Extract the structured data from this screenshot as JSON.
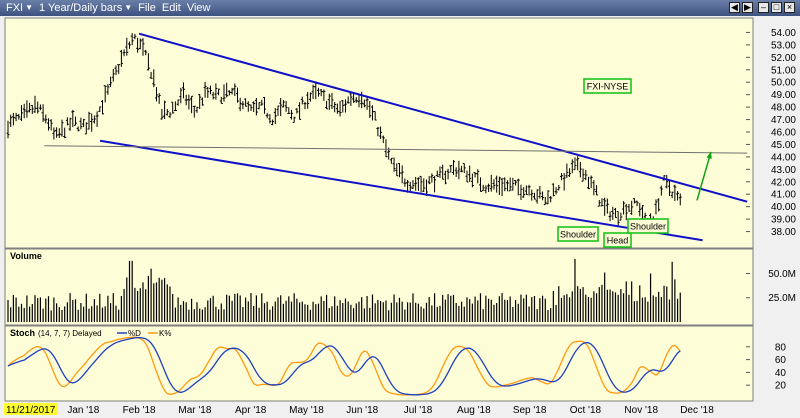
{
  "toolbar": {
    "symbol": "FXI",
    "period": "1 Year/Daily bars",
    "menus": [
      "File",
      "Edit",
      "View"
    ]
  },
  "colors": {
    "background": "#fdfdd8",
    "channel": "#1010c8",
    "neckline": "#707070",
    "bars": "#000000",
    "volume": "#000000",
    "stoch_d": "#2040c0",
    "stoch_k": "#ff9a10",
    "arrow": "#10a010",
    "label_border": "#10c010"
  },
  "chart_data": [
    {
      "type": "ohlc",
      "ylim": [
        37,
        55
      ],
      "yticks": [
        38,
        39,
        40,
        41,
        42,
        43,
        44,
        45,
        46,
        47,
        48,
        49,
        50,
        51,
        52,
        53,
        54
      ],
      "ytick_labels": [
        "38.00",
        "39.00",
        "40.00",
        "41.00",
        "42.00",
        "43.00",
        "44.00",
        "45.00",
        "46.00",
        "47.00",
        "48.00",
        "49.00",
        "50.00",
        "51.00",
        "52.00",
        "53.00",
        "54.00"
      ],
      "x_months": [
        "Jan '18",
        "Feb '18",
        "Mar '18",
        "Apr '18",
        "May '18",
        "Jun '18",
        "Jul '18",
        "Aug '18",
        "Sep '18",
        "Oct '18",
        "Nov '18",
        "Dec '18"
      ],
      "x_month_positions": [
        1.4,
        2.4,
        3.4,
        4.4,
        5.4,
        6.4,
        7.4,
        8.4,
        9.4,
        10.4,
        11.4,
        12.4
      ],
      "x_range": [
        0.05,
        13.35
      ],
      "price_anchors": [
        [
          0.05,
          46.6
        ],
        [
          0.3,
          47.2
        ],
        [
          0.55,
          48.1
        ],
        [
          0.75,
          47.0
        ],
        [
          0.9,
          45.5
        ],
        [
          1.0,
          46.0
        ],
        [
          1.2,
          46.8
        ],
        [
          1.4,
          46.4
        ],
        [
          1.65,
          47.4
        ],
        [
          1.85,
          49.3
        ],
        [
          2.1,
          52.0
        ],
        [
          2.3,
          53.6
        ],
        [
          2.45,
          52.8
        ],
        [
          2.65,
          50.5
        ],
        [
          2.8,
          47.5
        ],
        [
          2.95,
          47.6
        ],
        [
          3.2,
          49.0
        ],
        [
          3.4,
          47.6
        ],
        [
          3.6,
          49.2
        ],
        [
          3.8,
          48.9
        ],
        [
          4.1,
          49.1
        ],
        [
          4.4,
          47.7
        ],
        [
          4.6,
          48.0
        ],
        [
          4.8,
          47.1
        ],
        [
          5.0,
          48.1
        ],
        [
          5.2,
          47.2
        ],
        [
          5.4,
          48.7
        ],
        [
          5.6,
          49.1
        ],
        [
          5.8,
          48.4
        ],
        [
          6.0,
          47.7
        ],
        [
          6.2,
          48.8
        ],
        [
          6.4,
          48.9
        ],
        [
          6.6,
          47.3
        ],
        [
          6.75,
          45.5
        ],
        [
          6.95,
          43.2
        ],
        [
          7.2,
          42.0
        ],
        [
          7.5,
          41.8
        ],
        [
          7.8,
          42.4
        ],
        [
          8.05,
          43.1
        ],
        [
          8.3,
          42.7
        ],
        [
          8.6,
          41.7
        ],
        [
          8.9,
          41.8
        ],
        [
          9.1,
          41.6
        ],
        [
          9.4,
          41.4
        ],
        [
          9.7,
          40.5
        ],
        [
          10.0,
          42.2
        ],
        [
          10.2,
          43.2
        ],
        [
          10.35,
          43.0
        ],
        [
          10.55,
          41.4
        ],
        [
          10.75,
          39.8
        ],
        [
          10.95,
          39.3
        ],
        [
          11.15,
          40.0
        ],
        [
          11.35,
          40.2
        ],
        [
          11.5,
          38.7
        ],
        [
          11.65,
          39.4
        ],
        [
          11.8,
          42.0
        ],
        [
          11.95,
          41.3
        ],
        [
          12.1,
          40.4
        ]
      ],
      "lines": [
        {
          "name": "upper-channel",
          "from": [
            2.4,
            53.9
          ],
          "to": [
            13.3,
            40.4
          ]
        },
        {
          "name": "lower-channel",
          "from": [
            1.7,
            45.3
          ],
          "to": [
            12.5,
            37.3
          ]
        },
        {
          "name": "neckline",
          "from": [
            0.7,
            44.9
          ],
          "to": [
            13.3,
            44.3
          ]
        }
      ],
      "arrow": {
        "from": [
          12.4,
          40.5
        ],
        "to": [
          12.65,
          44.4
        ]
      },
      "labels": {
        "instrument": "FXI-NYSE",
        "left_shoulder": "Shoulder",
        "head": "Head",
        "right_shoulder": "Shoulder"
      }
    },
    {
      "type": "bar",
      "title": "Volume",
      "yticks": [
        25,
        50
      ],
      "ytick_labels": [
        "25.0M",
        "50.0M"
      ],
      "ylim": [
        0,
        68
      ],
      "events": [
        [
          2.25,
          63
        ],
        [
          2.6,
          55
        ],
        [
          10.2,
          65
        ],
        [
          11.95,
          62
        ],
        [
          10.75,
          51
        ],
        [
          11.55,
          50
        ]
      ]
    },
    {
      "type": "line",
      "title": "Stoch",
      "params": "(14, 7, 7) Delayed",
      "series_names": [
        "%D",
        "K%"
      ],
      "yticks": [
        20,
        40,
        60,
        80
      ],
      "ytick_labels": [
        "20",
        "40",
        "60",
        "80"
      ],
      "ylim": [
        0,
        100
      ]
    }
  ],
  "footer": {
    "date": "11/21/2017"
  }
}
